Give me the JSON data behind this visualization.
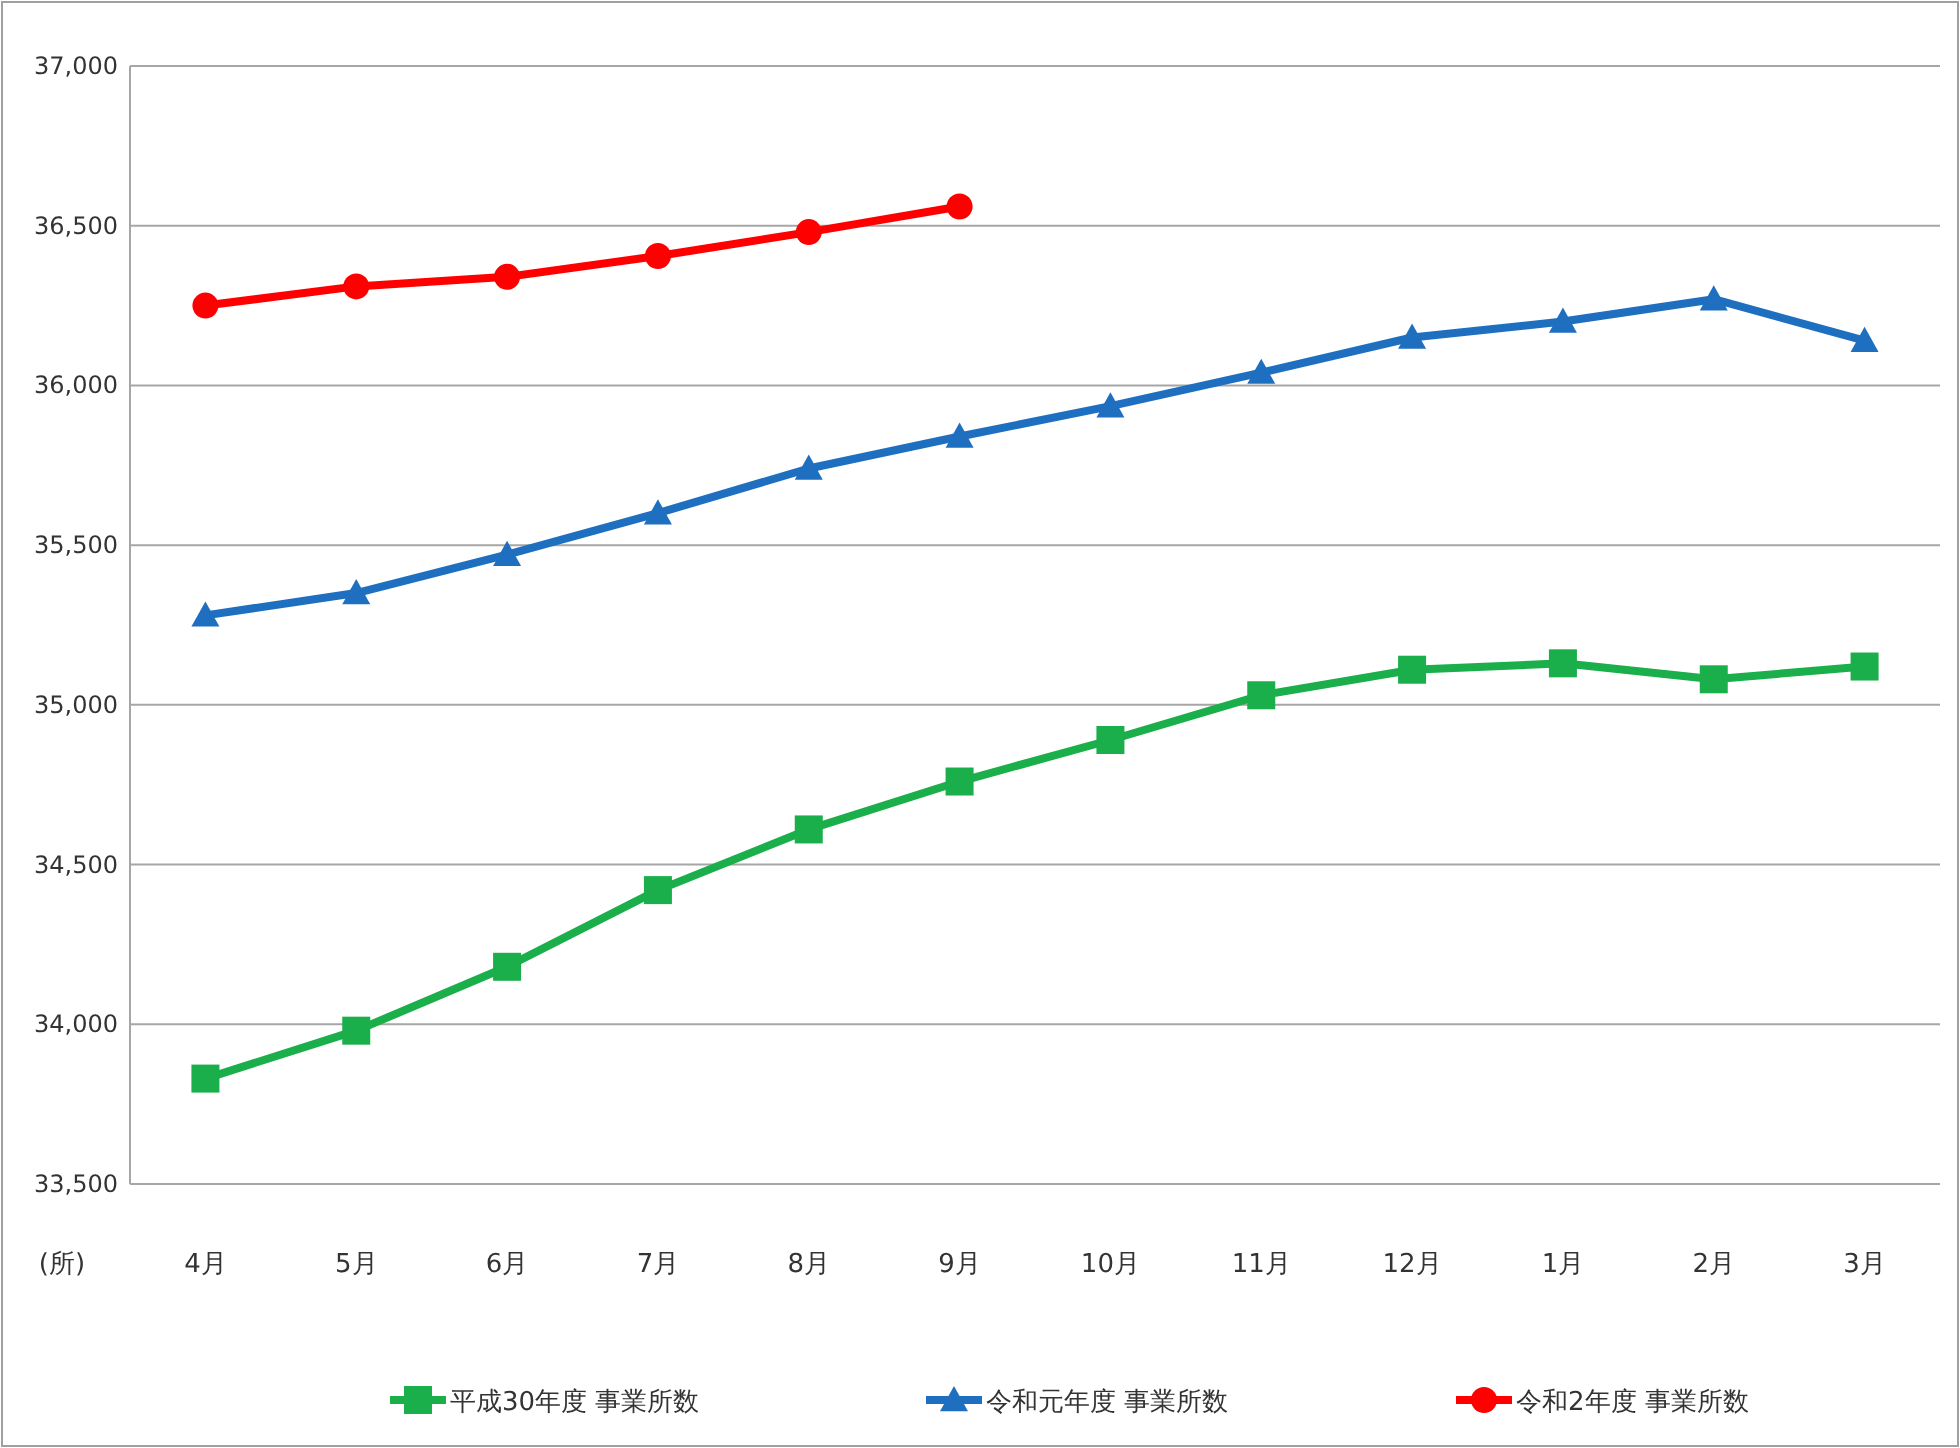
{
  "chart_data": {
    "type": "line",
    "ylabel": "(所)",
    "categories": [
      "4月",
      "5月",
      "6月",
      "7月",
      "8月",
      "9月",
      "10月",
      "11月",
      "12月",
      "1月",
      "2月",
      "3月"
    ],
    "ylim": [
      33500,
      37000
    ],
    "yticks": [
      {
        "value": 33500,
        "label": "33,500"
      },
      {
        "value": 34000,
        "label": "34,000"
      },
      {
        "value": 34500,
        "label": "34,500"
      },
      {
        "value": 35000,
        "label": "35,000"
      },
      {
        "value": 35500,
        "label": "35,500"
      },
      {
        "value": 36000,
        "label": "36,000"
      },
      {
        "value": 36500,
        "label": "36,500"
      },
      {
        "value": 37000,
        "label": "37,000"
      }
    ],
    "grid": "y",
    "legend": "bottom",
    "series": [
      {
        "name": "平成30年度 事業所数",
        "color": "#1aaf4b",
        "marker": "square",
        "values": [
          33830,
          33980,
          34180,
          34420,
          34610,
          34760,
          34890,
          35030,
          35110,
          35130,
          35080,
          35120
        ]
      },
      {
        "name": "令和元年度 事業所数",
        "color": "#1f6fc0",
        "marker": "triangle",
        "values": [
          35280,
          35350,
          35470,
          35600,
          35740,
          35840,
          35935,
          36040,
          36150,
          36200,
          36270,
          36140
        ]
      },
      {
        "name": "令和2年度 事業所数",
        "color": "#ff0000",
        "marker": "circle",
        "values": [
          36250,
          36310,
          36340,
          36405,
          36480,
          36560,
          null,
          null,
          null,
          null,
          null,
          null
        ]
      }
    ]
  }
}
